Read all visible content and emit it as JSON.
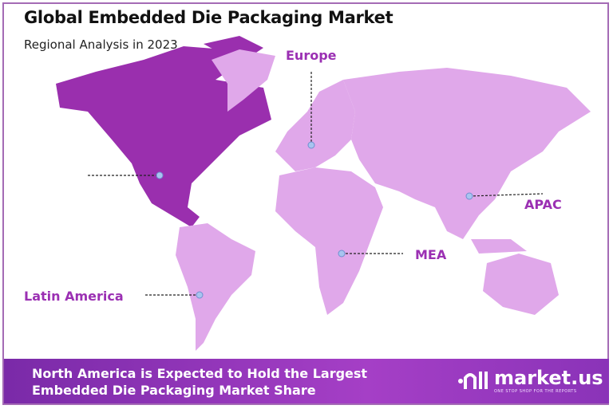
{
  "header": {
    "title": "Global Embedded Die Packaging Market",
    "subtitle": "Regional Analysis in 2023"
  },
  "regions": [
    {
      "name": "North America",
      "label": "",
      "highlighted": true
    },
    {
      "name": "Europe",
      "label": "Europe"
    },
    {
      "name": "APAC",
      "label": "APAC"
    },
    {
      "name": "MEA",
      "label": "MEA"
    },
    {
      "name": "Latin America",
      "label": "Latin America"
    }
  ],
  "colors": {
    "highlight": "#9a2fae",
    "land": "#e0a8ea",
    "label": "#9b30b3",
    "marker": "#a8c4f0"
  },
  "banner": {
    "line1": "North America is Expected to Hold the Largest",
    "line2": "Embedded Die Packaging Market Share"
  },
  "logo": {
    "name": "market.us",
    "tagline": "ONE STOP SHOP FOR THE REPORTS"
  }
}
